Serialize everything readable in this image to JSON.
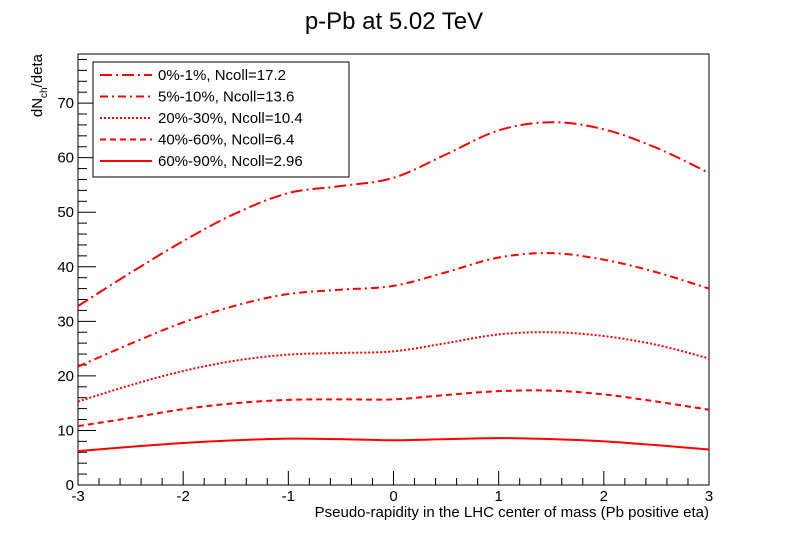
{
  "chart_data": {
    "type": "line",
    "title": "p-Pb at 5.02 TeV",
    "xlabel": "Pseudo-rapidity in the LHC center of mass (Pb positive eta)",
    "ylabel": {
      "main": "dN",
      "sub": "ch",
      "rest": "/deta"
    },
    "xlim": [
      -3,
      3
    ],
    "ylim": [
      0,
      79
    ],
    "xticks": [
      "-3",
      "-2",
      "-1",
      "0",
      "1",
      "2",
      "3"
    ],
    "yticks": [
      "0",
      "10",
      "20",
      "30",
      "40",
      "50",
      "60",
      "70"
    ],
    "grid": false,
    "legend_position": "top-left",
    "line_color": "#ff0000",
    "x": [
      -3.0,
      -2.5,
      -2.0,
      -1.5,
      -1.0,
      -0.5,
      0.0,
      0.5,
      1.0,
      1.5,
      2.0,
      2.5,
      3.0
    ],
    "series": [
      {
        "name": "0%-1%, Ncoll=17.2",
        "style": "dash-dot-long",
        "values": [
          32.8,
          38.9,
          44.7,
          49.8,
          53.5,
          54.8,
          56.3,
          60.6,
          65.0,
          66.5,
          65.2,
          61.8,
          57.2
        ]
      },
      {
        "name": "5%-10%, Ncoll=13.6",
        "style": "dash-dot",
        "values": [
          21.7,
          25.9,
          29.8,
          32.9,
          35.0,
          35.8,
          36.5,
          39.0,
          41.7,
          42.5,
          41.3,
          39.0,
          36.0
        ]
      },
      {
        "name": "20%-30%, Ncoll=10.4",
        "style": "dotted",
        "values": [
          15.3,
          18.3,
          20.9,
          22.8,
          23.9,
          24.2,
          24.5,
          26.0,
          27.6,
          28.0,
          27.3,
          25.7,
          23.2
        ]
      },
      {
        "name": "40%-60%, Ncoll=6.4",
        "style": "dashed",
        "values": [
          10.8,
          12.3,
          13.9,
          15.0,
          15.6,
          15.7,
          15.7,
          16.5,
          17.2,
          17.3,
          16.6,
          15.3,
          13.8
        ]
      },
      {
        "name": "60%-90%, Ncoll=2.96",
        "style": "solid",
        "values": [
          6.2,
          7.0,
          7.7,
          8.2,
          8.5,
          8.4,
          8.2,
          8.4,
          8.6,
          8.4,
          8.0,
          7.3,
          6.5
        ]
      }
    ]
  }
}
